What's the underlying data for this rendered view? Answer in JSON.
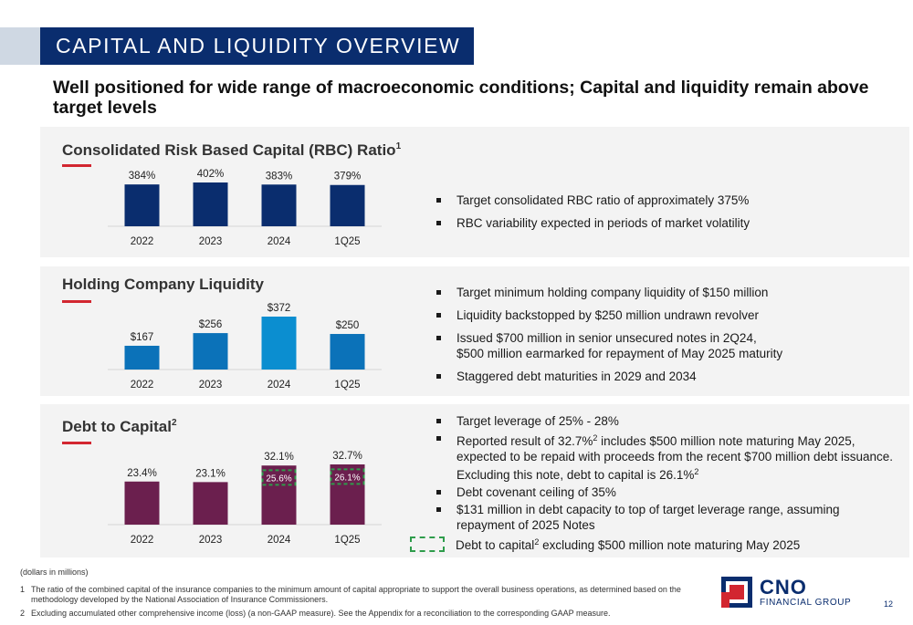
{
  "header": {
    "title": "CAPITAL AND LIQUIDITY OVERVIEW",
    "subtitle": "Well positioned for wide range of macroeconomic conditions; Capital and liquidity remain above target levels"
  },
  "rbc": {
    "title": "Consolidated Risk Based Capital (RBC) Ratio",
    "title_sup": "1",
    "bullets": [
      "Target consolidated RBC ratio of approximately 375%",
      "RBC variability expected in periods of market volatility"
    ]
  },
  "liquidity": {
    "title": "Holding Company Liquidity",
    "bullets": [
      "Target minimum holding company liquidity of $150 million",
      "Liquidity backstopped by $250 million undrawn revolver",
      "Issued $700 million in senior unsecured notes in 2Q24,\n$500 million earmarked for repayment of May 2025 maturity",
      "Staggered debt maturities in 2029 and 2034"
    ]
  },
  "debt": {
    "title": "Debt to Capital",
    "title_sup": "2",
    "bullets": {
      "b1": "Target leverage of 25% - 28%",
      "b2_pre": "Reported result of 32.7%",
      "b2_sup": "2",
      "b2_post": " includes $500 million note maturing May 2025, expected to be repaid with proceeds from the recent $700 million debt issuance.  Excluding this note, debt to capital is 26.1%",
      "b2_sup2": "2",
      "b3": "Debt covenant ceiling of 35%",
      "b4": "$131 million in debt capacity to top of target leverage range, assuming repayment of 2025 Notes"
    },
    "legend_pre": "Debt to capital",
    "legend_sup": "2",
    "legend_post": " excluding $500 million note maturing May 2025"
  },
  "footer": {
    "units": "(dollars in millions)",
    "fn1_num": "1",
    "fn1": "The ratio of the combined capital of the insurance companies to the minimum amount of capital appropriate to support the overall business operations, as determined based on the methodology developed by the National Association of Insurance Commissioners.",
    "fn2_num": "2",
    "fn2": "Excluding accumulated other comprehensive income (loss) (a non-GAAP measure). See the Appendix for a reconciliation to the corresponding GAAP measure.",
    "logo_big": "CNO",
    "logo_small": "FINANCIAL GROUP",
    "page": "12"
  },
  "colors": {
    "navy": "#0a2d6e",
    "blue": "#0b72b9",
    "purple": "#6b1f4e",
    "red": "#d22630",
    "green_dash": "#2e9c4b"
  },
  "chart_data": [
    {
      "type": "bar",
      "title": "Consolidated Risk Based Capital (RBC) Ratio",
      "categories": [
        "2022",
        "2023",
        "2024",
        "1Q25"
      ],
      "values": [
        384,
        402,
        383,
        379
      ],
      "labels": [
        "384%",
        "402%",
        "383%",
        "379%"
      ],
      "color": "#0a2d6e"
    },
    {
      "type": "bar",
      "title": "Holding Company Liquidity",
      "categories": [
        "2022",
        "2023",
        "2024",
        "1Q25"
      ],
      "values": [
        167,
        256,
        372,
        250
      ],
      "labels": [
        "$167",
        "$256",
        "$372",
        "$250"
      ],
      "colors": [
        "#0b72b9",
        "#0b72b9",
        "#0b8ed0",
        "#0b72b9"
      ]
    },
    {
      "type": "bar",
      "title": "Debt to Capital",
      "categories": [
        "2022",
        "2023",
        "2024",
        "1Q25"
      ],
      "values": [
        23.4,
        23.1,
        32.1,
        32.7
      ],
      "labels": [
        "23.4%",
        "23.1%",
        "32.1%",
        "32.7%"
      ],
      "excluding_note": [
        null,
        null,
        25.6,
        26.1
      ],
      "excluding_labels": [
        "",
        "",
        "25.6%",
        "26.1%"
      ],
      "color": "#6b1f4e"
    }
  ]
}
